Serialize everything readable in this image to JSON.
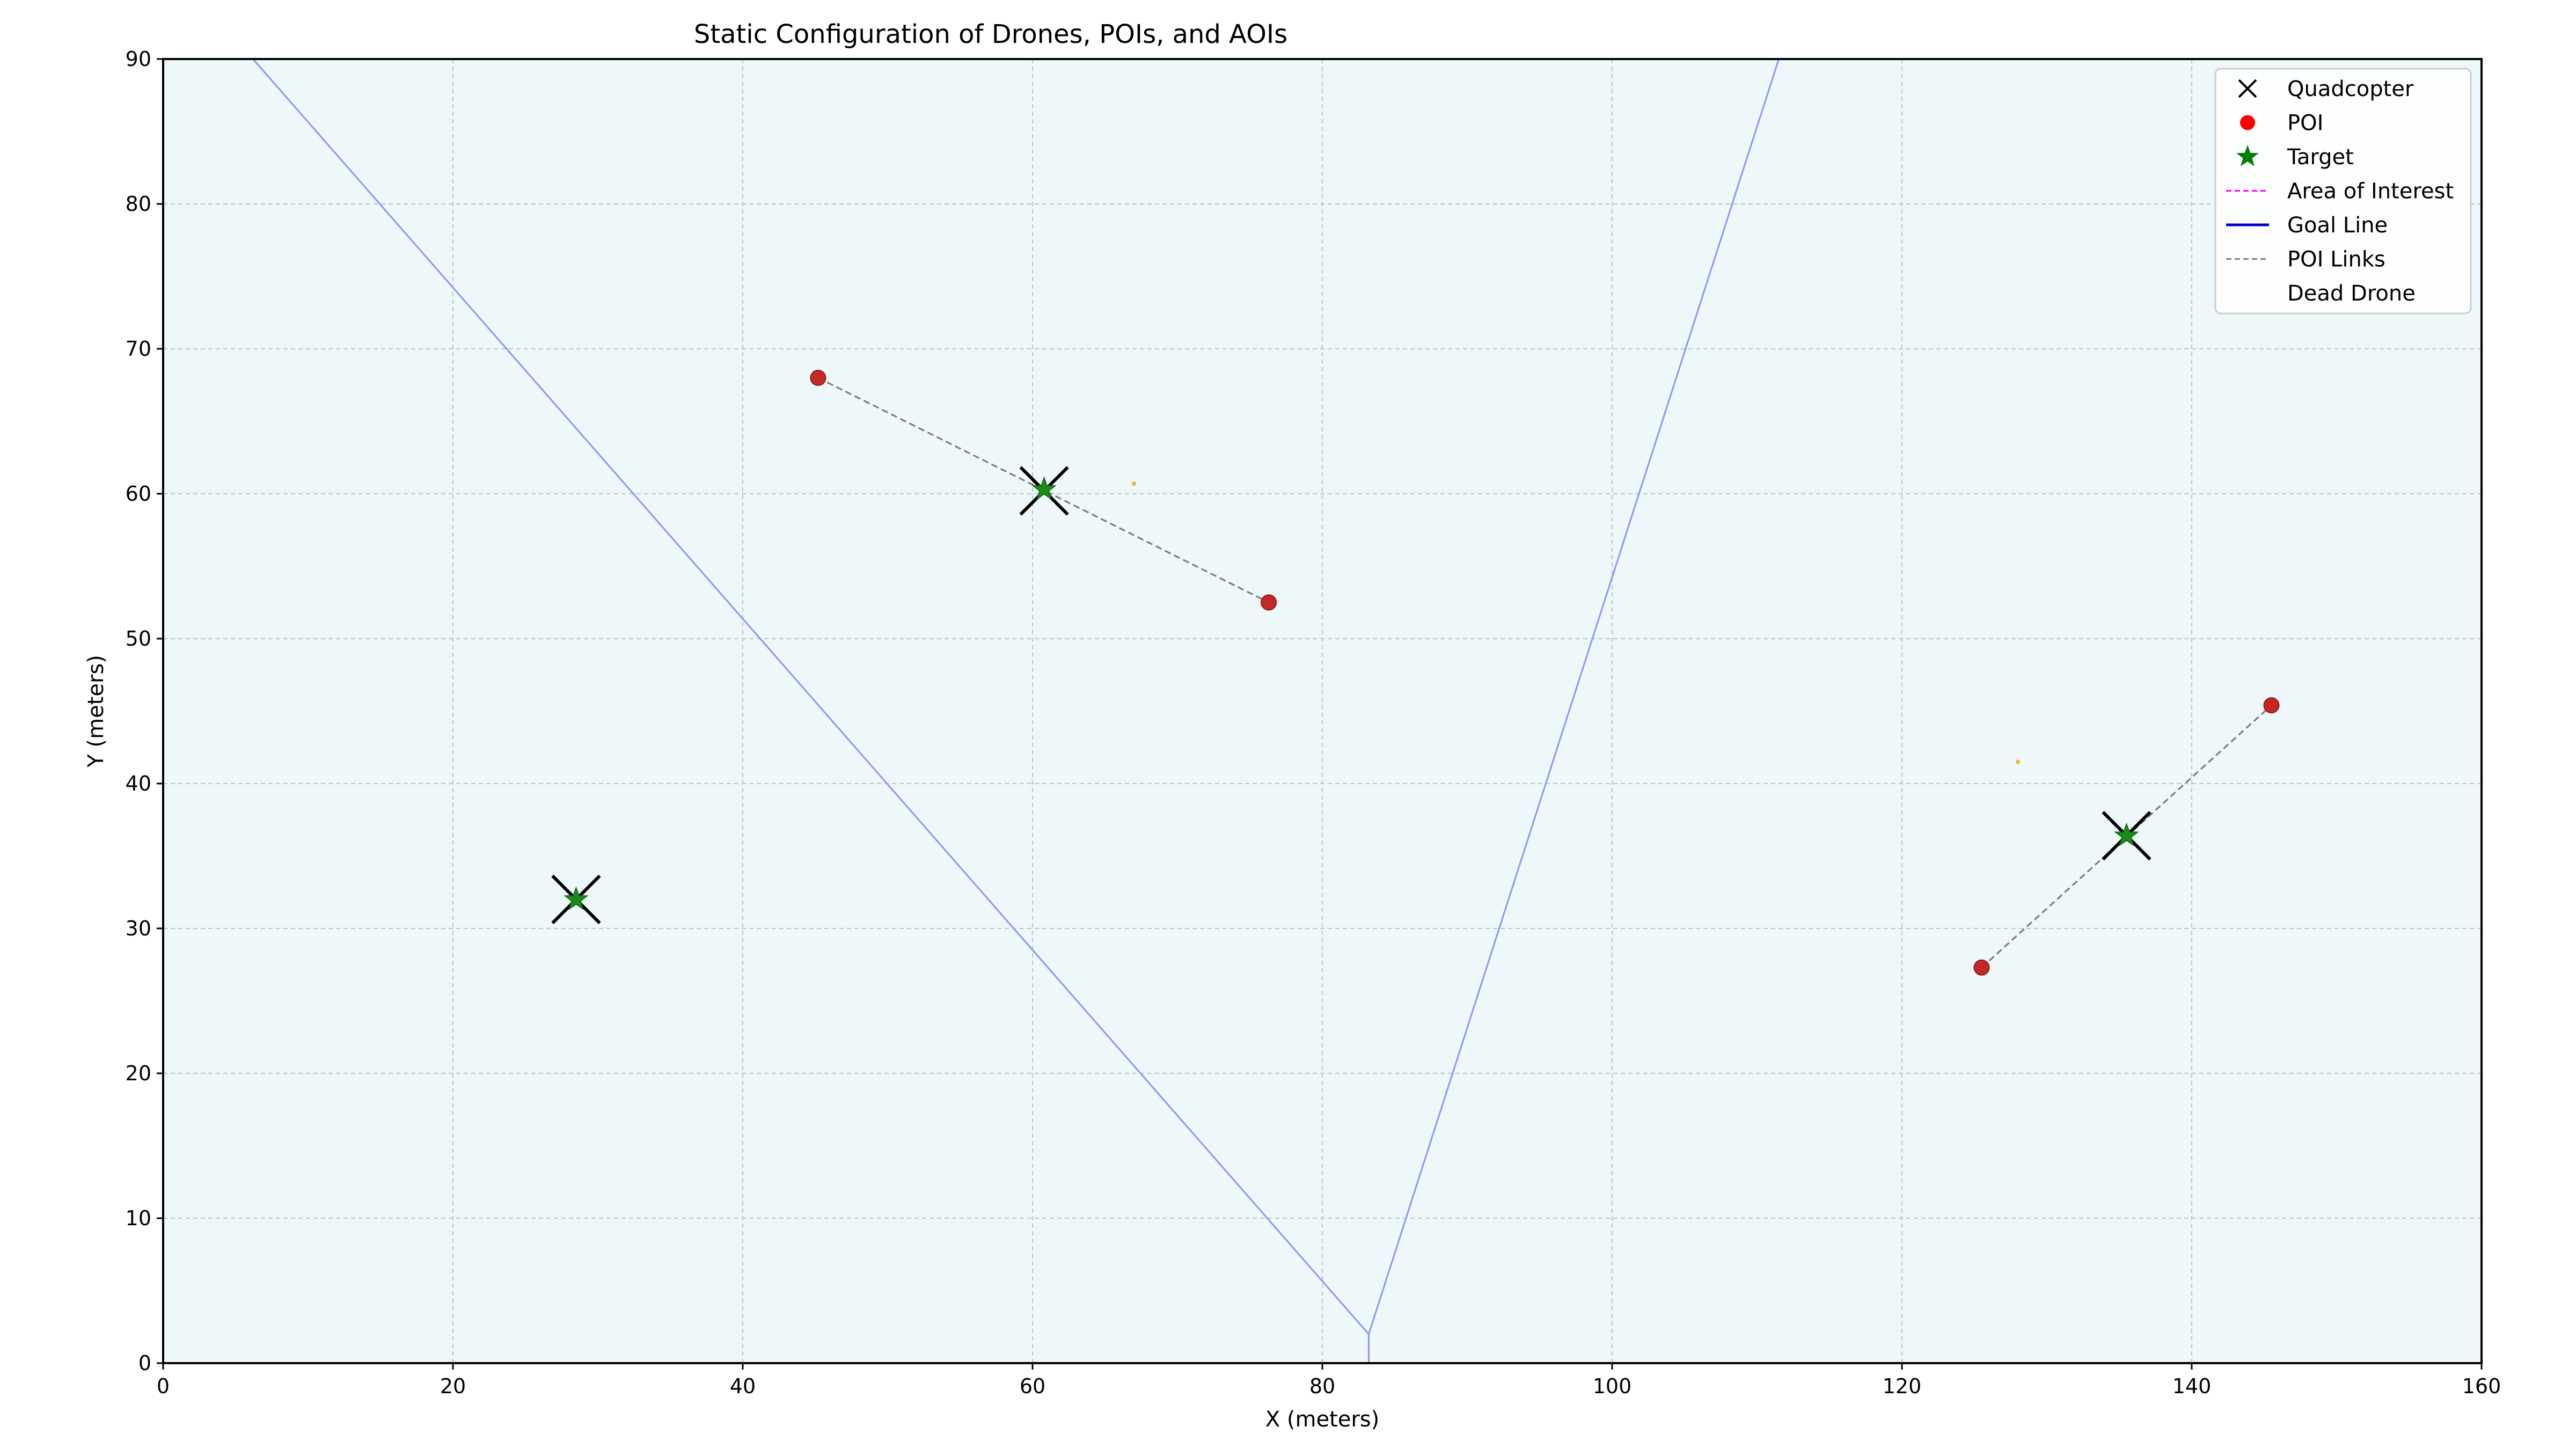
{
  "chart_data": {
    "type": "scatter",
    "title": "Static Configuration of Drones, POIs, and AOIs",
    "xlabel": "X (meters)",
    "ylabel": "Y (meters)",
    "xlim": [
      0,
      160
    ],
    "ylim": [
      0,
      90
    ],
    "xticks": [
      0,
      20,
      40,
      60,
      80,
      100,
      120,
      140,
      160
    ],
    "yticks": [
      0,
      10,
      20,
      30,
      40,
      50,
      60,
      70,
      80,
      90
    ],
    "grid": true,
    "legend_position": "top-right",
    "legend": [
      {
        "label": "Quadcopter",
        "marker": "x",
        "color": "#000000"
      },
      {
        "label": "POI",
        "marker": "circle",
        "color": "#ff0000"
      },
      {
        "label": "Target",
        "marker": "star",
        "color": "#008000"
      },
      {
        "label": "Area of Interest",
        "marker": "dashed-line",
        "color": "#ff00ff"
      },
      {
        "label": "Goal Line",
        "marker": "line",
        "color": "#0000cc"
      },
      {
        "label": "POI Links",
        "marker": "dashed-line",
        "color": "#808080"
      },
      {
        "label": "Dead Drone",
        "marker": "none",
        "color": "#ffffff"
      }
    ],
    "quadcopters": [
      {
        "x": 28.5,
        "y": 32.0
      },
      {
        "x": 60.8,
        "y": 60.2
      },
      {
        "x": 135.5,
        "y": 36.4
      }
    ],
    "targets": [
      {
        "x": 28.5,
        "y": 32.0
      },
      {
        "x": 60.8,
        "y": 60.3
      },
      {
        "x": 135.5,
        "y": 36.4
      }
    ],
    "pois": [
      {
        "x": 45.2,
        "y": 68.0
      },
      {
        "x": 76.3,
        "y": 52.5
      },
      {
        "x": 125.5,
        "y": 27.3
      },
      {
        "x": 145.5,
        "y": 45.4
      }
    ],
    "poi_links": [
      {
        "from": [
          45.2,
          68.0
        ],
        "to": [
          76.3,
          52.5
        ]
      },
      {
        "from": [
          125.5,
          27.3
        ],
        "to": [
          145.5,
          45.4
        ]
      }
    ],
    "boundary_lines": [
      {
        "x": [
          6.2,
          83.2
        ],
        "y": [
          90,
          2.0
        ]
      },
      {
        "x": [
          83.2,
          83.2
        ],
        "y": [
          2.0,
          0
        ]
      },
      {
        "x": [
          83.2,
          111.5
        ],
        "y": [
          2.0,
          90
        ]
      }
    ],
    "small_markers": [
      {
        "x": 67.0,
        "y": 60.7
      },
      {
        "x": 128.0,
        "y": 41.5
      }
    ],
    "colors": {
      "background": "#eef7f9",
      "poi": "#c62828",
      "target": "#1a8a1a",
      "quadcopter": "#000000",
      "boundary": "#8899ee",
      "link": "#777777",
      "grid": "#b8c4cc",
      "small_marker": "#e0c030"
    }
  }
}
